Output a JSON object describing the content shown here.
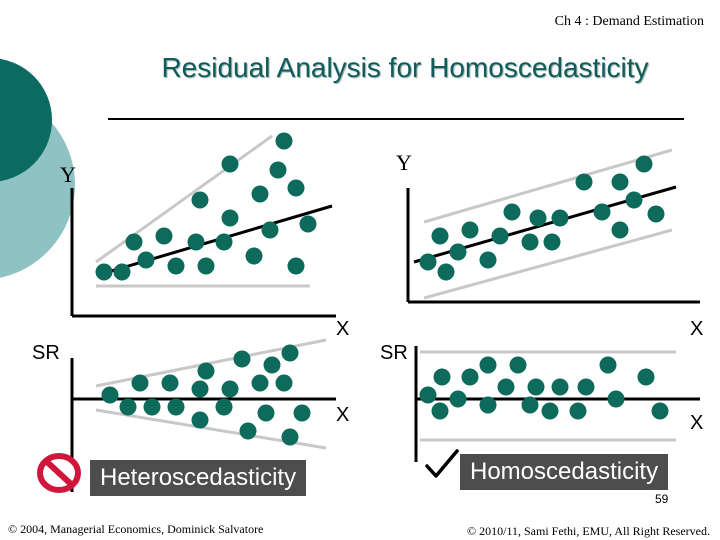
{
  "header": {
    "chapter": "Ch 4 : Demand Estimation"
  },
  "title": "Residual Analysis for Homoscedasticity",
  "panels": {
    "top_left": {
      "y_label": "Y",
      "x_label": "X"
    },
    "top_right": {
      "y_label": "Y",
      "x_label": "X"
    },
    "bottom_left": {
      "y_label": "SR",
      "x_label": "X",
      "caption": "Heteroscedasticity"
    },
    "bottom_right": {
      "y_label": "SR",
      "x_label": "X",
      "caption": "Homoscedasticity"
    }
  },
  "icons": {
    "bottom_left": "prohibited-icon",
    "bottom_right": "checkmark-icon"
  },
  "colors": {
    "dot": "#0e6b5c",
    "title": "#0f5c5b",
    "caption_bg": "#4d4d4d",
    "deco_dark": "#0b6b63",
    "deco_light": "#8fc3c3",
    "prohibit": "#d0163b"
  },
  "page_number": "59",
  "footer": {
    "left": "© 2004,  Managerial Economics, Dominick Salvatore",
    "right": "© 2010/11, Sami Fethi, EMU, All Right Reserved."
  }
}
